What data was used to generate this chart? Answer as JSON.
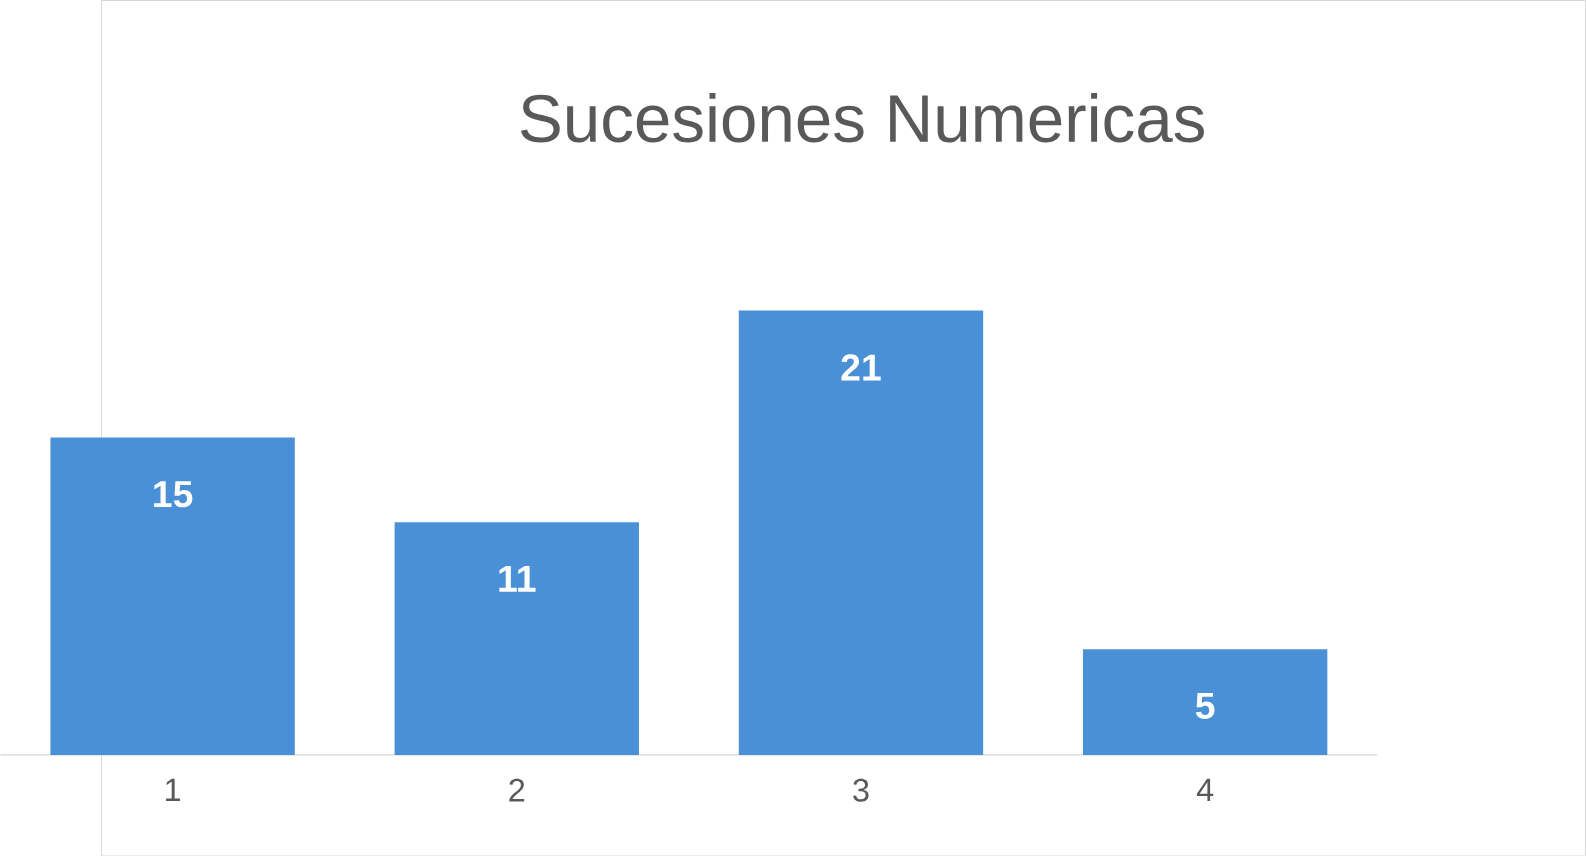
{
  "chart_data": {
    "type": "bar",
    "title": "Sucesiones Numericas",
    "categories": [
      "1",
      "2",
      "3",
      "4"
    ],
    "values": [
      15,
      11,
      21,
      5
    ],
    "color": "#4a90d6",
    "data_labels": true
  }
}
